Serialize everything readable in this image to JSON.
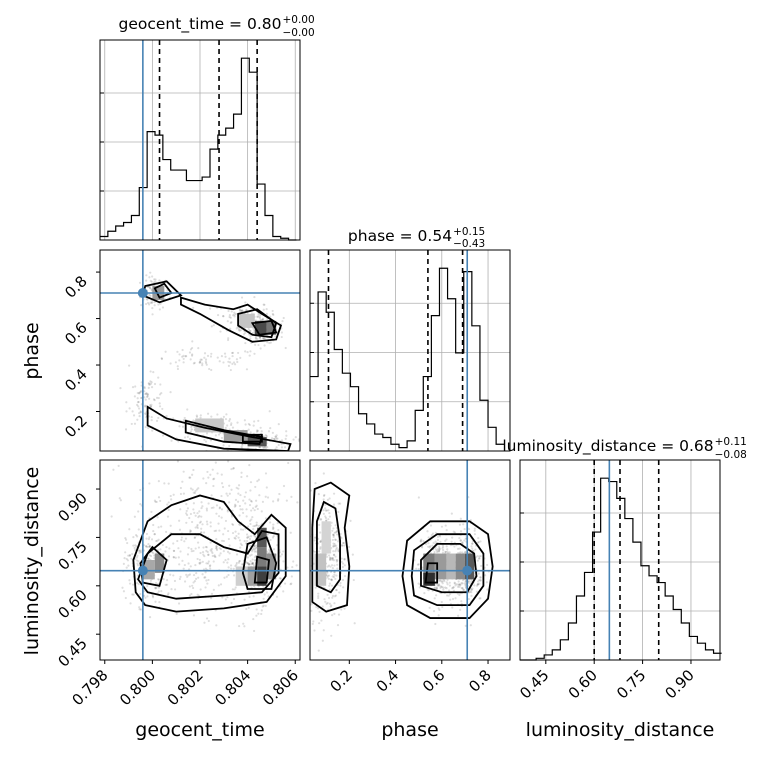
{
  "chart_data": {
    "type": "corner",
    "parameters": [
      "geocent_time",
      "phase",
      "luminosity_distance"
    ],
    "axis_labels": {
      "geocent_time": "geocent_time",
      "phase": "phase",
      "luminosity_distance": "luminosity_distance"
    },
    "ranges": {
      "geocent_time": [
        0.7978,
        0.8062
      ],
      "phase": [
        0.03,
        0.895
      ],
      "luminosity_distance": [
        0.37,
        0.99
      ]
    },
    "ticks": {
      "geocent_time": [
        "0.798",
        "0.800",
        "0.802",
        "0.804",
        "0.806"
      ],
      "phase": [
        "0.2",
        "0.4",
        "0.6",
        "0.8"
      ],
      "luminosity_distance": [
        "0.45",
        "0.60",
        "0.75",
        "0.90"
      ]
    },
    "titles": {
      "geocent_time": {
        "name": "geocent_time",
        "median": "0.80",
        "plus": "+0.00",
        "minus": "−0.00"
      },
      "phase": {
        "name": "phase",
        "median": "0.54",
        "plus": "+0.15",
        "minus": "−0.43"
      },
      "luminosity_distance": {
        "name": "luminosity_distance",
        "median": "0.68",
        "plus": "+0.11",
        "minus": "−0.08"
      }
    },
    "truths": {
      "geocent_time": 0.7996,
      "phase": 0.71,
      "luminosity_distance": 0.647
    },
    "truth_color": "#4682b4",
    "quantiles": {
      "geocent_time": [
        0.8003,
        0.8028,
        0.8044
      ],
      "phase": [
        0.11,
        0.54,
        0.69
      ],
      "luminosity_distance": [
        0.6,
        0.68,
        0.8
      ]
    },
    "histograms": {
      "geocent_time": {
        "edges": [
          0.7978,
          0.79813,
          0.79846,
          0.79879,
          0.79912,
          0.79945,
          0.79978,
          0.80011,
          0.80044,
          0.80077,
          0.8011,
          0.80143,
          0.80176,
          0.80209,
          0.80242,
          0.80275,
          0.80308,
          0.80341,
          0.80374,
          0.80407,
          0.8044,
          0.80473,
          0.80506,
          0.80539,
          0.80572,
          0.80605
        ],
        "counts": [
          2,
          5,
          8,
          10,
          14,
          30,
          62,
          60,
          46,
          40,
          40,
          34,
          34,
          36,
          52,
          60,
          64,
          72,
          104,
          96,
          32,
          14,
          2,
          1,
          0
        ]
      },
      "phase": {
        "edges": [
          0.03,
          0.065,
          0.1,
          0.135,
          0.17,
          0.205,
          0.24,
          0.275,
          0.31,
          0.345,
          0.38,
          0.415,
          0.45,
          0.485,
          0.52,
          0.555,
          0.59,
          0.625,
          0.66,
          0.695,
          0.73,
          0.765,
          0.8,
          0.835,
          0.87
        ],
        "counts": [
          44,
          94,
          82,
          60,
          46,
          38,
          22,
          16,
          10,
          8,
          4,
          2,
          6,
          24,
          44,
          80,
          108,
          90,
          58,
          106,
          74,
          30,
          14,
          4
        ]
      },
      "luminosity_distance": {
        "edges": [
          0.37,
          0.395,
          0.42,
          0.445,
          0.47,
          0.495,
          0.52,
          0.545,
          0.57,
          0.595,
          0.62,
          0.645,
          0.67,
          0.695,
          0.72,
          0.745,
          0.77,
          0.795,
          0.82,
          0.845,
          0.87,
          0.895,
          0.92,
          0.945,
          0.97,
          0.995
        ],
        "counts": [
          0,
          0,
          1,
          3,
          6,
          12,
          22,
          38,
          52,
          76,
          108,
          106,
          96,
          84,
          70,
          56,
          50,
          46,
          38,
          30,
          22,
          14,
          10,
          6,
          4
        ]
      }
    }
  }
}
